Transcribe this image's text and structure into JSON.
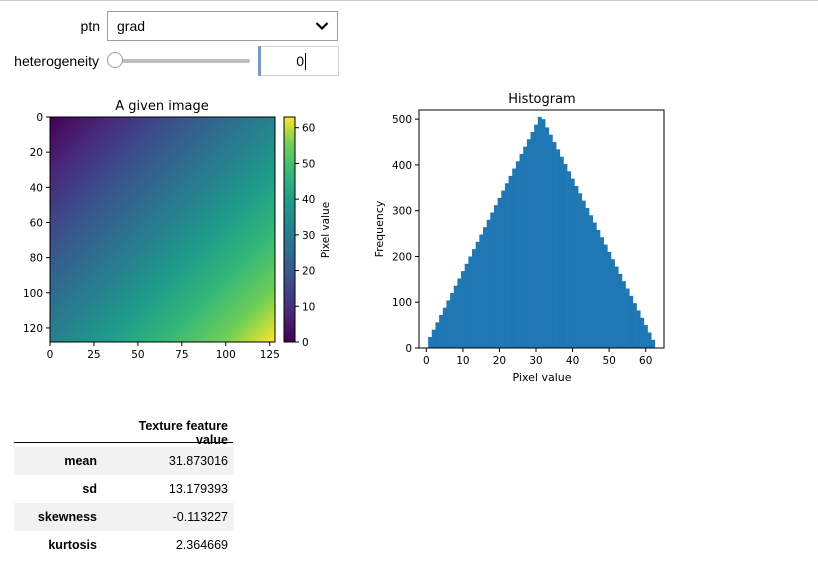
{
  "controls": {
    "ptn_label": "ptn",
    "ptn_value": "grad",
    "heterogeneity_label": "heterogeneity",
    "heterogeneity_value": "0",
    "slider_fraction": 0
  },
  "image_plot": {
    "title": "A given image",
    "colormap": "viridis",
    "x_ticks": [
      "0",
      "25",
      "50",
      "75",
      "100",
      "125"
    ],
    "y_ticks": [
      "0",
      "20",
      "40",
      "60",
      "80",
      "100",
      "120"
    ],
    "colorbar_label": "Pixel value",
    "colorbar_ticks": [
      "0",
      "10",
      "20",
      "30",
      "40",
      "50",
      "60"
    ]
  },
  "chart_data": {
    "type": "bar",
    "title": "Histogram",
    "xlabel": "Pixel value",
    "ylabel": "Frequency",
    "xlim": [
      -2,
      65
    ],
    "ylim": [
      0,
      520
    ],
    "x_ticks": [
      "0",
      "10",
      "20",
      "30",
      "40",
      "50",
      "60"
    ],
    "y_ticks": [
      "0",
      "100",
      "200",
      "300",
      "400",
      "500"
    ],
    "color": "#1f77b4",
    "bins": [
      1,
      2,
      3,
      4,
      5,
      6,
      7,
      8,
      9,
      10,
      11,
      12,
      13,
      14,
      15,
      16,
      17,
      18,
      19,
      20,
      21,
      22,
      23,
      24,
      25,
      26,
      27,
      28,
      29,
      30,
      31,
      32,
      33,
      34,
      35,
      36,
      37,
      38,
      39,
      40,
      41,
      42,
      43,
      44,
      45,
      46,
      47,
      48,
      49,
      50,
      51,
      52,
      53,
      54,
      55,
      56,
      57,
      58,
      59,
      60,
      61,
      62
    ],
    "values": [
      24,
      40,
      56,
      72,
      88,
      104,
      120,
      136,
      152,
      168,
      184,
      200,
      216,
      232,
      248,
      264,
      280,
      296,
      312,
      328,
      344,
      360,
      376,
      392,
      408,
      424,
      440,
      456,
      472,
      488,
      505,
      500,
      482,
      466,
      450,
      434,
      418,
      402,
      386,
      370,
      354,
      338,
      322,
      306,
      290,
      274,
      258,
      242,
      226,
      210,
      194,
      178,
      162,
      146,
      130,
      114,
      98,
      82,
      66,
      50,
      34,
      18
    ]
  },
  "table": {
    "header": "Texture feature value",
    "rows": [
      {
        "name": "mean",
        "value": "31.873016"
      },
      {
        "name": "sd",
        "value": "13.179393"
      },
      {
        "name": "skewness",
        "value": "-0.113227"
      },
      {
        "name": "kurtosis",
        "value": "2.364669"
      }
    ]
  }
}
